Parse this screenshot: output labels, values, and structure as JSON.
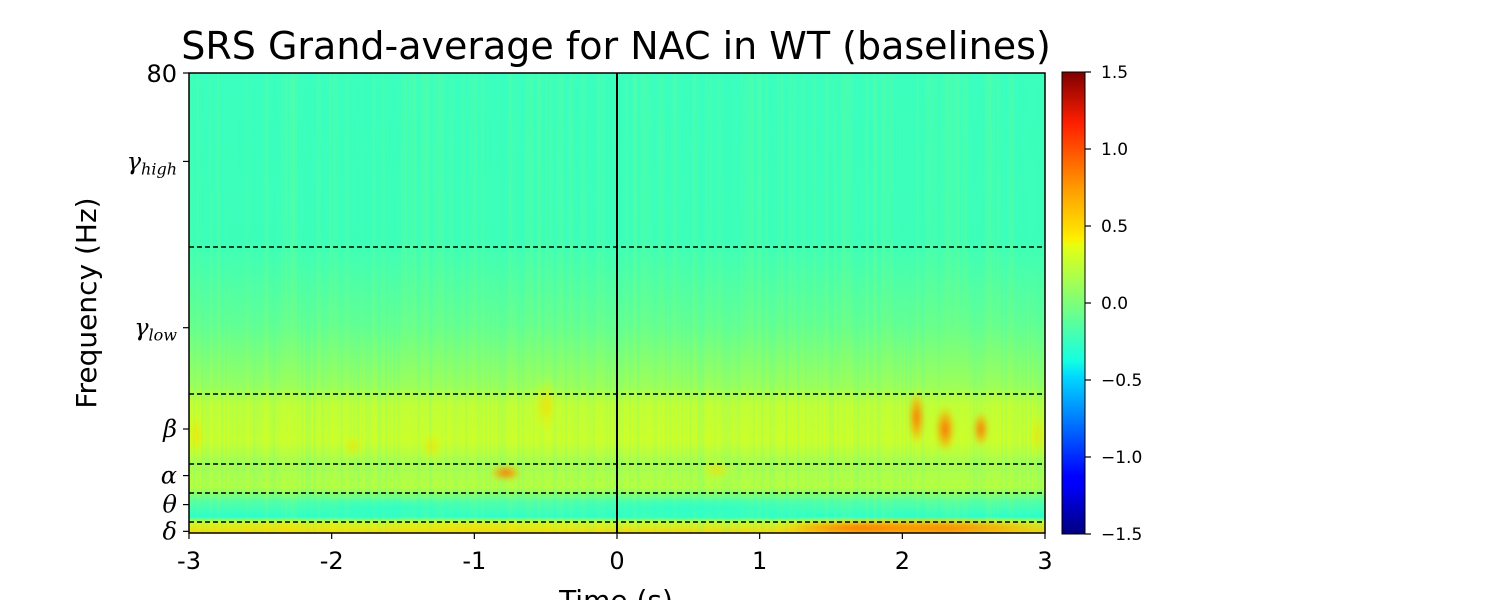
{
  "chart_data": {
    "type": "heatmap",
    "title": "SRS Grand-average for NAC in WT (baselines)",
    "xlabel": "Time (s)",
    "ylabel": "Frequency (Hz)",
    "xlim": [
      -3,
      3
    ],
    "ylim": [
      0,
      80
    ],
    "x_ticks": [
      {
        "value": -3,
        "label": "-3"
      },
      {
        "value": -2,
        "label": "-2"
      },
      {
        "value": -1,
        "label": "-1"
      },
      {
        "value": 0,
        "label": "0"
      },
      {
        "value": 1,
        "label": "1"
      },
      {
        "value": 2,
        "label": "2"
      },
      {
        "value": 3,
        "label": "3"
      }
    ],
    "y_tick_top": {
      "value": 80,
      "label": "80"
    },
    "bands": [
      {
        "name": "δ",
        "sub": "",
        "freq": 0.3
      },
      {
        "name": "θ",
        "sub": "",
        "freq": 5
      },
      {
        "name": "α",
        "sub": "",
        "freq": 10
      },
      {
        "name": "β",
        "sub": "",
        "freq": 18
      },
      {
        "name": "γ",
        "sub": "low",
        "freq": 35.5
      },
      {
        "name": "γ",
        "sub": "high",
        "freq": 64.5
      }
    ],
    "band_boundaries_hz": [
      2,
      7,
      12,
      24,
      49.5
    ],
    "event_time_s": 0,
    "colorbar": {
      "colormap": "jet",
      "range": [
        -1.5,
        1.5
      ],
      "ticks": [
        {
          "value": 1.5,
          "label": "1.5"
        },
        {
          "value": 1.0,
          "label": "1.0"
        },
        {
          "value": 0.5,
          "label": "0.5"
        },
        {
          "value": 0.0,
          "label": "0.0"
        },
        {
          "value": -0.5,
          "label": "−0.5"
        },
        {
          "value": -1.0,
          "label": "−1.0"
        },
        {
          "value": -1.5,
          "label": "−1.5"
        }
      ]
    },
    "heatmap_levels": {
      "background": -0.2,
      "gamma_low_region": -0.05,
      "beta_region": 0.35,
      "alpha_region": 0.15,
      "theta_region": -0.35,
      "delta_pre_event": 0.45,
      "delta_post_event_peak": 1.1
    }
  }
}
